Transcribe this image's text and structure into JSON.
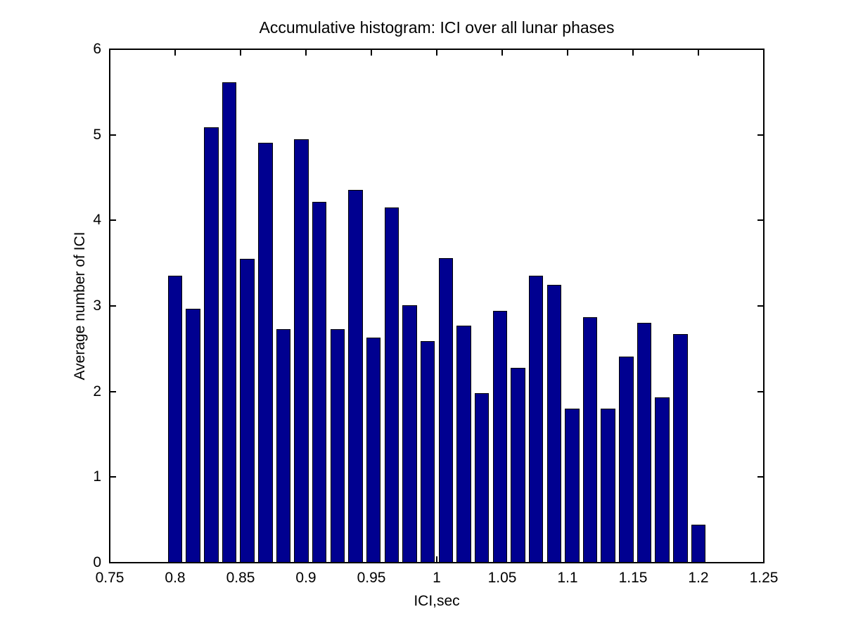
{
  "figure": {
    "background": "#ffffff",
    "bar_fill": "#000090",
    "bar_edge": "#000000",
    "axis_color": "#000000"
  },
  "chart_data": {
    "type": "bar",
    "title": "Accumulative histogram: ICI over all lunar phases",
    "xlabel": "ICI,sec",
    "ylabel": "Average number of ICI",
    "xlim": [
      0.75,
      1.25
    ],
    "ylim": [
      0,
      6
    ],
    "grid": false,
    "legend": null,
    "bar_width_fraction": 0.8,
    "bin_spacing": 0.0137931,
    "x_ticks": [
      0.75,
      0.8,
      0.85,
      0.9,
      0.95,
      1,
      1.05,
      1.1,
      1.15,
      1.2,
      1.25
    ],
    "x_tick_labels": [
      "0.75",
      "0.8",
      "0.85",
      "0.9",
      "0.95",
      "1",
      "1.05",
      "1.1",
      "1.15",
      "1.2",
      "1.25"
    ],
    "y_ticks": [
      0,
      1,
      2,
      3,
      4,
      5,
      6
    ],
    "y_tick_labels": [
      "0",
      "1",
      "2",
      "3",
      "4",
      "5",
      "6"
    ],
    "x": [
      0.8,
      0.8138,
      0.8276,
      0.8414,
      0.8552,
      0.869,
      0.8828,
      0.8966,
      0.9103,
      0.9241,
      0.9379,
      0.9517,
      0.9655,
      0.9793,
      0.9931,
      1.0069,
      1.0207,
      1.0345,
      1.0483,
      1.0621,
      1.0759,
      1.0897,
      1.1034,
      1.1172,
      1.131,
      1.1448,
      1.1586,
      1.1724,
      1.1862,
      1.2
    ],
    "values": [
      3.35,
      2.97,
      5.09,
      5.61,
      3.55,
      4.91,
      2.73,
      4.95,
      4.22,
      2.73,
      4.36,
      2.63,
      4.15,
      3.01,
      2.59,
      3.56,
      2.77,
      1.98,
      2.94,
      2.28,
      3.35,
      3.25,
      1.8,
      2.87,
      1.8,
      2.41,
      2.8,
      1.93,
      2.67,
      0.44
    ]
  }
}
